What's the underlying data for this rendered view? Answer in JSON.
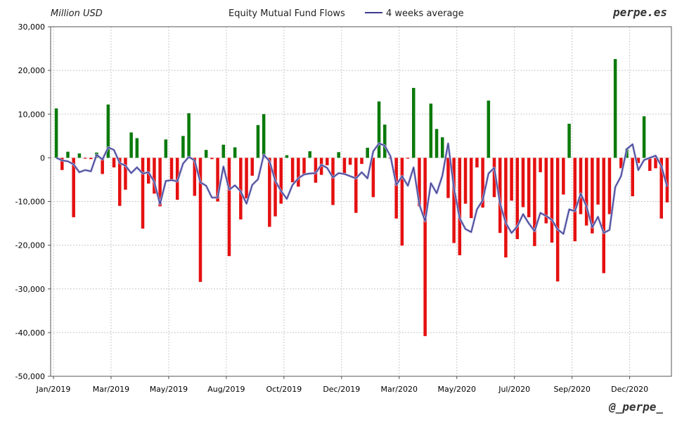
{
  "brand_top": "perpe.es",
  "brand_bottom": "@_perpe_",
  "colors": {
    "positive": "#0a7a0a",
    "negative": "#e51010",
    "average_line": "#3b3b8f",
    "grid": "#c8c8c8"
  },
  "chart_data": {
    "type": "bar",
    "title": "Equity Mutual Fund Flows",
    "unit_label": "Million USD",
    "legend": {
      "entries": [
        "4 weeks average"
      ],
      "placement": "top"
    },
    "grid": true,
    "ylim": [
      -50000,
      30000
    ],
    "yticks": [
      30000,
      20000,
      10000,
      0,
      -10000,
      -20000,
      -30000,
      -40000,
      -50000
    ],
    "ytick_labels": [
      "30,000",
      "20,000",
      "10,000",
      "0",
      "-10,000",
      "-20,000",
      "-30,000",
      "-40,000",
      "-50,000"
    ],
    "xtick_labels": [
      {
        "label": "Jan/2019",
        "week": 0
      },
      {
        "label": "Mar/2019",
        "week": 10
      },
      {
        "label": "May/2019",
        "week": 20
      },
      {
        "label": "Aug/2019",
        "week": 30
      },
      {
        "label": "Oct/2019",
        "week": 40
      },
      {
        "label": "Dec/2019",
        "week": 50
      },
      {
        "label": "Mar/2020",
        "week": 60
      },
      {
        "label": "May/2020",
        "week": 70
      },
      {
        "label": "Jul/2020",
        "week": 80
      },
      {
        "label": "Sep/2020",
        "week": 90
      },
      {
        "label": "Dec/2020",
        "week": 100
      }
    ],
    "series": [
      {
        "name": "Equity Mutual Fund Flows",
        "kind": "bar",
        "values": [
          11300,
          -2800,
          1400,
          -13600,
          1000,
          -200,
          -300,
          1200,
          -3700,
          12200,
          -2200,
          -11000,
          -7300,
          5800,
          4500,
          -16200,
          -5900,
          -8200,
          -11100,
          4200,
          -5200,
          -9600,
          5000,
          10200,
          -8700,
          -28400,
          1800,
          -300,
          -10000,
          3000,
          -22500,
          2400,
          -14100,
          -9300,
          -4100,
          7500,
          10000,
          -15800,
          -13400,
          -10500,
          600,
          -5600,
          -6600,
          -4000,
          1500,
          -5700,
          -3900,
          -1700,
          -10800,
          1300,
          -3500,
          -1600,
          -12600,
          -1400,
          2300,
          -9000,
          12900,
          7600,
          -200,
          -13900,
          -20100,
          -200,
          16000,
          -11100,
          -40800,
          12400,
          6600,
          4700,
          -9200,
          -19500,
          -22300,
          -10500,
          -13800,
          -2200,
          -11400,
          13100,
          -9000,
          -17200,
          -22800,
          -9800,
          -18600,
          -11300,
          -13600,
          -20200,
          -3300,
          -15000,
          -19400,
          -28300,
          -8400,
          7800,
          -19100,
          -12900,
          -15500,
          -17300,
          -10700,
          -26400,
          -12900,
          22600,
          -2400,
          2100,
          -8800,
          -1200,
          9500,
          -3000,
          -2400,
          -13900,
          -10200
        ]
      },
      {
        "name": "4 weeks average",
        "kind": "line",
        "values": [
          0,
          -600,
          -800,
          -1500,
          -3300,
          -2800,
          -3100,
          700,
          -400,
          2400,
          1800,
          -1200,
          -1800,
          -3500,
          -2200,
          -3600,
          -3300,
          -5500,
          -10600,
          -5300,
          -5100,
          -5400,
          -1300,
          200,
          -600,
          -5600,
          -6400,
          -9100,
          -9100,
          -2000,
          -7300,
          -6300,
          -7700,
          -10500,
          -6200,
          -4900,
          700,
          -800,
          -5300,
          -7600,
          -9400,
          -6200,
          -4700,
          -3800,
          -3600,
          -3500,
          -1600,
          -2300,
          -4500,
          -3500,
          -3700,
          -4200,
          -4700,
          -3300,
          -4700,
          1500,
          3300,
          2800,
          300,
          -6200,
          -4200,
          -6400,
          -2200,
          -10700,
          -14500,
          -5800,
          -8100,
          -4100,
          3300,
          -6900,
          -13800,
          -16300,
          -17000,
          -11800,
          -9700,
          -3600,
          -2300,
          -10400,
          -14900,
          -17200,
          -15700,
          -12900,
          -15000,
          -16800,
          -12600,
          -13300,
          -14200,
          -16400,
          -17400,
          -11800,
          -12200,
          -8200,
          -11100,
          -15900,
          -13500,
          -17200,
          -16500,
          -6700,
          -4200,
          2000,
          3100,
          -2800,
          -500,
          0,
          500,
          -1900,
          -6600
        ]
      }
    ]
  }
}
